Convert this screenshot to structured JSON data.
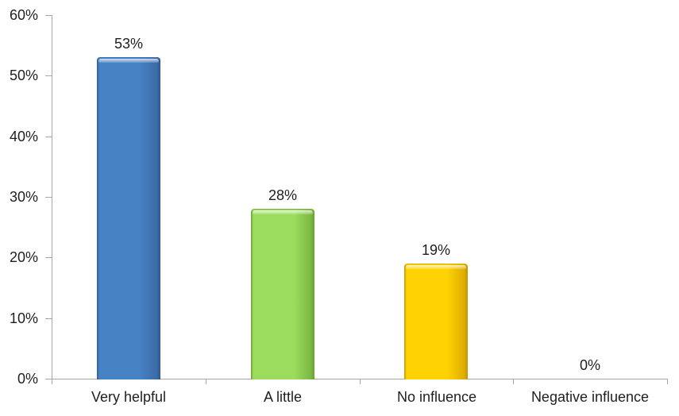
{
  "colors": {
    "background": "#ffffff",
    "axis": "#a6a6a6",
    "text": "#1f1f1f"
  },
  "chart_data": {
    "type": "bar",
    "categories": [
      "Very helpful",
      "A little",
      "No influence",
      "Negative influence"
    ],
    "values": [
      53,
      28,
      19,
      0
    ],
    "value_labels": [
      "53%",
      "28%",
      "19%",
      "0%"
    ],
    "ylim": [
      0,
      60
    ],
    "y_tick_step": 10,
    "y_tick_labels": [
      "0%",
      "10%",
      "20%",
      "30%",
      "40%",
      "50%",
      "60%"
    ],
    "grid": false,
    "legend_position": "none",
    "xlabel": "",
    "ylabel": "",
    "series_colors": [
      {
        "fill": "#4682c4",
        "highlight": "#85b1e2",
        "shade": "#3b6ca8",
        "edge": "#2e598f"
      },
      {
        "fill": "#9bdc5d",
        "highlight": "#c4ec96",
        "shade": "#7cb945",
        "edge": "#65a135"
      },
      {
        "fill": "#ffd203",
        "highlight": "#ffe878",
        "shade": "#dfae00",
        "edge": "#bf9600"
      },
      null
    ]
  }
}
